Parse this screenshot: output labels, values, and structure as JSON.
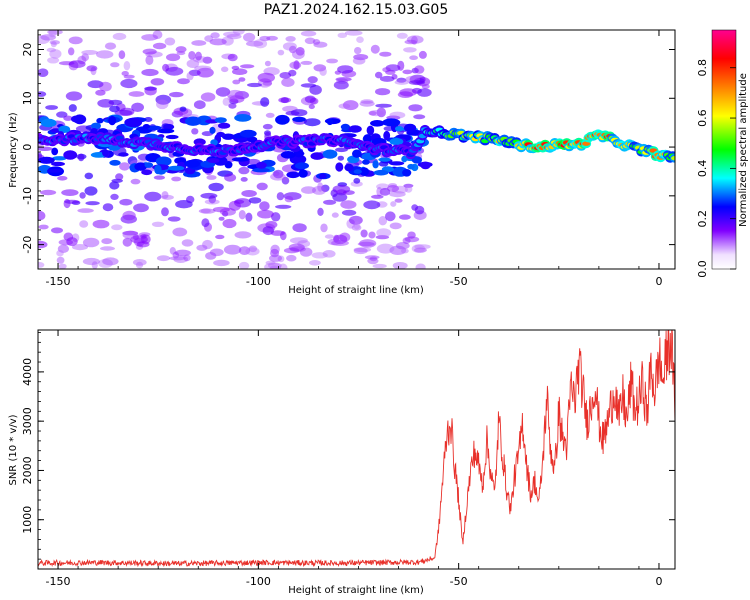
{
  "figure": {
    "title": "PAZ1.2024.162.15.03.G05"
  },
  "chart_data": [
    {
      "type": "heatmap",
      "name": "spectrogram",
      "xlabel": "Height of straight line (km)",
      "ylabel": "Frequency (Hz)",
      "xlim": [
        -155,
        4
      ],
      "ylim": [
        -25,
        24
      ],
      "xticks": [
        -150,
        -100,
        -50,
        0
      ],
      "yticks": [
        -20,
        -10,
        0,
        10,
        20
      ],
      "xtick_labels": [
        "-150",
        "-100",
        "-50",
        "0"
      ],
      "ytick_labels": [
        "-20",
        "-10",
        "0",
        "10",
        "20"
      ],
      "colorbar": {
        "label": "Normalized spectral amplitude",
        "range": [
          0.0,
          0.95
        ],
        "ticks": [
          0.0,
          0.2,
          0.4,
          0.6,
          0.8
        ],
        "tick_labels": [
          "0.0",
          "0.2",
          "0.4",
          "0.6",
          "0.8"
        ],
        "colormap": [
          "#ffffff",
          "#8000ff",
          "#0000ff",
          "#00ffff",
          "#00ff00",
          "#ffff00",
          "#ff8000",
          "#ff0000",
          "#ff0080"
        ]
      },
      "noise_region": {
        "x": [
          -155,
          -58
        ],
        "y": [
          -25,
          24
        ],
        "amplitude": [
          0.05,
          0.25
        ]
      },
      "signal_ridge": {
        "x": [
          -155,
          -140,
          -125,
          -110,
          -95,
          -80,
          -70,
          -62,
          -58,
          -55,
          -50,
          -45,
          -40,
          -35,
          -30,
          -25,
          -20,
          -15,
          -10,
          -5,
          0,
          4
        ],
        "frequency": [
          1.5,
          1.8,
          0.5,
          -1.0,
          1.0,
          1.5,
          -0.5,
          -1.0,
          3.5,
          3.0,
          2.5,
          2.0,
          1.5,
          0.5,
          0.0,
          0.5,
          0.5,
          2.5,
          1.0,
          -0.5,
          -1.5,
          -2.5
        ],
        "amplitude": [
          0.28,
          0.32,
          0.3,
          0.3,
          0.28,
          0.3,
          0.3,
          0.28,
          0.4,
          0.45,
          0.55,
          0.6,
          0.62,
          0.66,
          0.85,
          0.8,
          0.78,
          0.85,
          0.65,
          0.62,
          0.8,
          0.6
        ]
      }
    },
    {
      "type": "line",
      "name": "snr",
      "xlabel": "Height of straight line (km)",
      "ylabel": "SNR (10 * v/v)",
      "xlim": [
        -155,
        4
      ],
      "ylim": [
        0,
        4850
      ],
      "xticks": [
        -150,
        -100,
        -50,
        0
      ],
      "yticks": [
        1000,
        2000,
        3000,
        4000
      ],
      "xtick_labels": [
        "-150",
        "-100",
        "-50",
        "0"
      ],
      "ytick_labels": [
        "1000",
        "2000",
        "3000",
        "4000"
      ],
      "color": "#e8302a",
      "x": [
        -155,
        -140,
        -120,
        -100,
        -80,
        -60,
        -56,
        -55,
        -54,
        -53,
        -52,
        -51,
        -50,
        -49,
        -48,
        -47,
        -46,
        -45,
        -44,
        -43,
        -42,
        -41,
        -40,
        -39,
        -38,
        -37,
        -36,
        -35,
        -34,
        -33,
        -32,
        -31,
        -30,
        -29,
        -28,
        -27,
        -26,
        -25,
        -24,
        -23,
        -22,
        -21,
        -20,
        -19,
        -18,
        -17,
        -16,
        -15,
        -14,
        -13,
        -12,
        -11,
        -10,
        -9,
        -8,
        -7,
        -6,
        -5,
        -4,
        -3,
        -2,
        -1,
        0,
        1,
        2,
        3,
        4
      ],
      "y": [
        120,
        130,
        110,
        130,
        120,
        140,
        220,
        800,
        1800,
        2700,
        3000,
        2100,
        1400,
        500,
        1300,
        2000,
        2400,
        2100,
        1700,
        2600,
        2000,
        1500,
        3000,
        2300,
        1600,
        1200,
        1900,
        2300,
        3000,
        2100,
        1500,
        1800,
        1300,
        2200,
        3500,
        2400,
        2000,
        3200,
        2600,
        2500,
        3700,
        3400,
        4150,
        3600,
        3000,
        3300,
        3800,
        3000,
        2600,
        2900,
        3300,
        3700,
        3000,
        3500,
        3000,
        3800,
        3200,
        3400,
        3800,
        3100,
        4100,
        3600,
        4300,
        3800,
        4400,
        4700,
        3300
      ]
    }
  ]
}
